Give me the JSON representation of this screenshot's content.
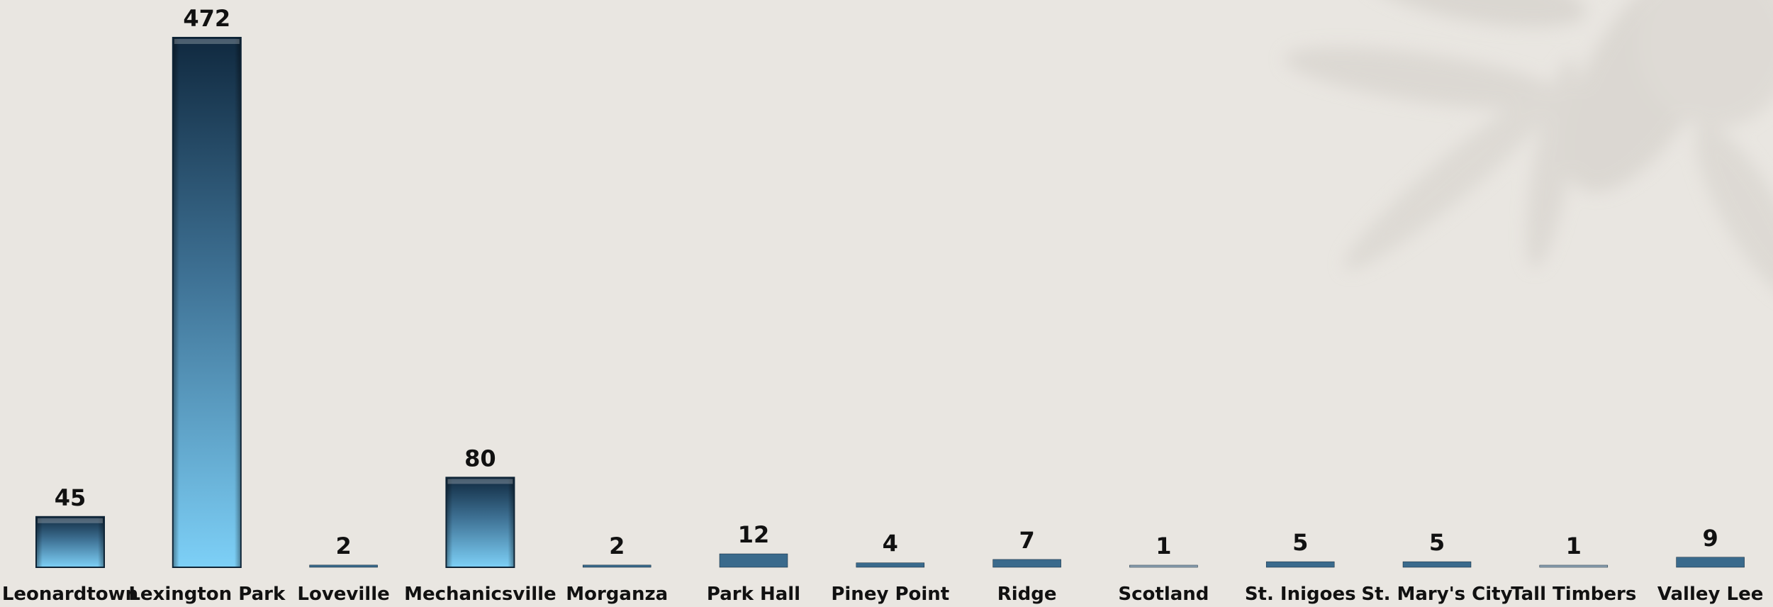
{
  "chart_data": {
    "type": "bar",
    "title": "",
    "xlabel": "",
    "ylabel": "",
    "categories": [
      "Leonardtown",
      "Lexington Park",
      "Loveville",
      "Mechanicsville",
      "Morganza",
      "Park Hall",
      "Piney Point",
      "Ridge",
      "Scotland",
      "St. Inigoes",
      "St. Mary's City",
      "Tall Timbers",
      "Valley Lee"
    ],
    "values": [
      45,
      472,
      2,
      80,
      2,
      12,
      4,
      7,
      1,
      5,
      5,
      1,
      9
    ],
    "ylim": [
      0,
      472
    ],
    "grid": false,
    "legend": "none",
    "bar_color_top": "#10293f",
    "bar_color_bottom": "#7dd0f7",
    "background": "#e9e6e1",
    "decor": "faint-leaf-watermark-top-right"
  }
}
